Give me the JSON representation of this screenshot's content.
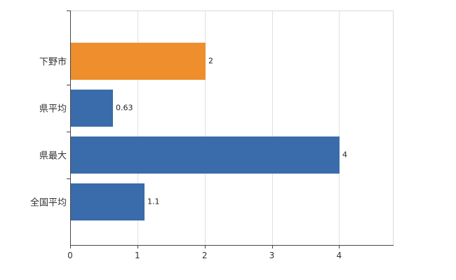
{
  "chart_data": {
    "type": "bar",
    "orientation": "horizontal",
    "title": "",
    "xlabel": "",
    "ylabel": "",
    "categories": [
      "下野市",
      "県平均",
      "県最大",
      "全国平均"
    ],
    "values": [
      2,
      0.63,
      4,
      1.1
    ],
    "value_labels": [
      "2",
      "0.63",
      "4",
      "1.1"
    ],
    "bar_colors": [
      "#ef8e2c",
      "#3a6cab",
      "#3a6cab",
      "#3a6cab"
    ],
    "xlim": [
      0,
      4.8
    ],
    "x_ticks": [
      0,
      1,
      2,
      3,
      4
    ],
    "x_tick_labels": [
      "0",
      "1",
      "2",
      "3",
      "4"
    ],
    "grid": "vertical",
    "legend": "none"
  },
  "colors": {
    "highlight_bar": "#ef8e2c",
    "default_bar": "#3a6cab",
    "grid": "#e0e0e0",
    "axis": "#454545",
    "text": "#333333",
    "background": "#ffffff"
  }
}
